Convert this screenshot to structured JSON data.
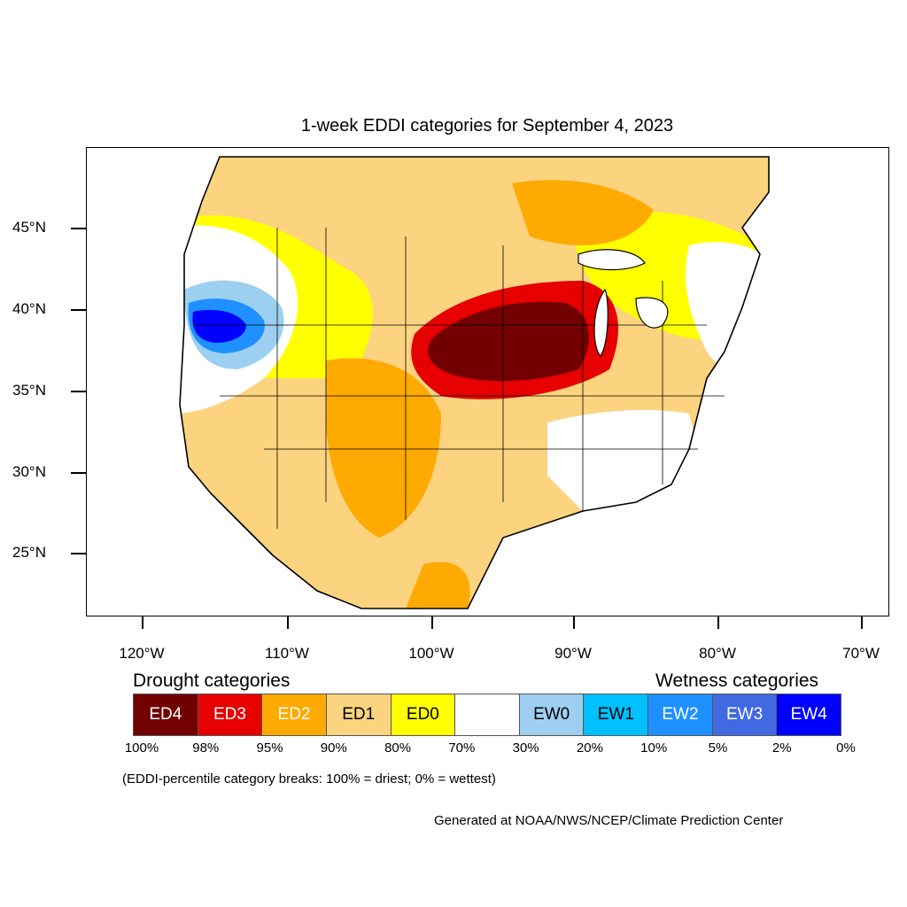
{
  "title": "1-week EDDI categories for September 4, 2023",
  "lat_labels": [
    "45°N",
    "40°N",
    "35°N",
    "30°N",
    "25°N"
  ],
  "lon_labels": [
    "120°W",
    "110°W",
    "100°W",
    "90°W",
    "80°W",
    "70°W"
  ],
  "legend": {
    "drought_label": "Drought categories",
    "wetness_label": "Wetness categories",
    "categories": [
      {
        "label": "ED4",
        "color": "#730000",
        "text_color": "#ffffff"
      },
      {
        "label": "ED3",
        "color": "#e60000",
        "text_color": "#ffffff"
      },
      {
        "label": "ED2",
        "color": "#ffaa00",
        "text_color": "#ffffff"
      },
      {
        "label": "ED1",
        "color": "#fcd37f",
        "text_color": "#000000"
      },
      {
        "label": "ED0",
        "color": "#ffff00",
        "text_color": "#000000"
      },
      {
        "label": "",
        "color": "#ffffff",
        "text_color": "#000000"
      },
      {
        "label": "EW0",
        "color": "#9dd0f0",
        "text_color": "#000000"
      },
      {
        "label": "EW1",
        "color": "#00c0ff",
        "text_color": "#000000"
      },
      {
        "label": "EW2",
        "color": "#1e90ff",
        "text_color": "#ffffff"
      },
      {
        "label": "EW3",
        "color": "#4169e1",
        "text_color": "#ffffff"
      },
      {
        "label": "EW4",
        "color": "#0000ff",
        "text_color": "#ffffff"
      }
    ],
    "percentiles": [
      "100%",
      "98%",
      "95%",
      "90%",
      "80%",
      "70%",
      "30%",
      "20%",
      "10%",
      "5%",
      "2%",
      "0%"
    ]
  },
  "note": "(EDDI-percentile category breaks: 100% = driest; 0% = wettest)",
  "credit": "Generated at NOAA/NWS/NCEP/Climate Prediction Center"
}
